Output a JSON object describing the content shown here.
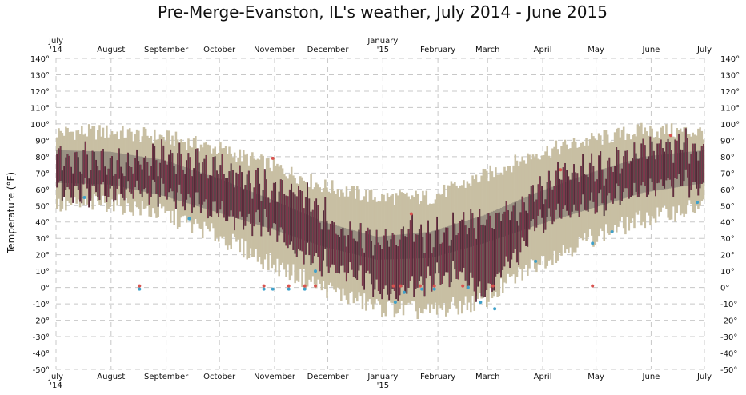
{
  "chart_data": {
    "type": "bar",
    "title": "Pre-Merge-Evanston, IL's weather, July 2014 - June 2015",
    "ylabel": "Temperature (°F)",
    "xlabel": "",
    "ylim": [
      -50,
      140
    ],
    "y_ticks": [
      "-50°",
      "-40°",
      "-30°",
      "-20°",
      "-10°",
      "0°",
      "10°",
      "20°",
      "30°",
      "40°",
      "50°",
      "60°",
      "70°",
      "80°",
      "90°",
      "100°",
      "110°",
      "120°",
      "130°",
      "140°"
    ],
    "x_ticks": [
      {
        "day": 0,
        "line1": "July",
        "line2": "'14"
      },
      {
        "day": 31,
        "line1": "August",
        "line2": ""
      },
      {
        "day": 62,
        "line1": "September",
        "line2": ""
      },
      {
        "day": 92,
        "line1": "October",
        "line2": ""
      },
      {
        "day": 123,
        "line1": "November",
        "line2": ""
      },
      {
        "day": 153,
        "line1": "December",
        "line2": ""
      },
      {
        "day": 184,
        "line1": "January",
        "line2": "'15"
      },
      {
        "day": 215,
        "line1": "February",
        "line2": ""
      },
      {
        "day": 243,
        "line1": "March",
        "line2": ""
      },
      {
        "day": 274,
        "line1": "April",
        "line2": ""
      },
      {
        "day": 304,
        "line1": "May",
        "line2": ""
      },
      {
        "day": 335,
        "line1": "June",
        "line2": ""
      },
      {
        "day": 365,
        "line1": "July",
        "line2": ""
      }
    ],
    "grid": true,
    "record_anchors": {
      "day": [
        0,
        30,
        60,
        90,
        120,
        150,
        180,
        210,
        240,
        270,
        300,
        330,
        365
      ],
      "high": [
        95,
        95,
        92,
        85,
        75,
        62,
        55,
        55,
        68,
        82,
        90,
        96,
        95
      ],
      "low": [
        50,
        52,
        45,
        32,
        15,
        0,
        -12,
        -15,
        -8,
        15,
        30,
        42,
        50
      ]
    },
    "normal_anchors": {
      "day": [
        0,
        30,
        60,
        90,
        120,
        150,
        180,
        210,
        240,
        270,
        300,
        330,
        365
      ],
      "high": [
        84,
        83,
        78,
        67,
        54,
        40,
        31,
        34,
        44,
        58,
        70,
        80,
        84
      ],
      "low": [
        64,
        63,
        56,
        46,
        36,
        25,
        17,
        18,
        27,
        38,
        48,
        58,
        64
      ]
    },
    "actual_anchors": {
      "day": [
        0,
        20,
        40,
        60,
        80,
        100,
        120,
        135,
        150,
        160,
        175,
        185,
        200,
        210,
        225,
        240,
        255,
        270,
        285,
        300,
        315,
        330,
        345,
        365
      ],
      "high": [
        80,
        78,
        76,
        80,
        75,
        70,
        62,
        60,
        45,
        32,
        30,
        28,
        36,
        30,
        38,
        40,
        45,
        58,
        70,
        72,
        75,
        85,
        88,
        85
      ],
      "low": [
        60,
        58,
        60,
        58,
        50,
        42,
        40,
        22,
        15,
        10,
        5,
        -5,
        0,
        5,
        10,
        -5,
        15,
        40,
        45,
        50,
        55,
        60,
        65,
        62
      ]
    },
    "record_high_markers": [
      {
        "day": 47,
        "value": 1
      },
      {
        "day": 117,
        "value": 1
      },
      {
        "day": 122,
        "value": 79
      },
      {
        "day": 131,
        "value": 1
      },
      {
        "day": 140,
        "value": 1
      },
      {
        "day": 146,
        "value": 1
      },
      {
        "day": 190,
        "value": 1
      },
      {
        "day": 194,
        "value": 1
      },
      {
        "day": 200,
        "value": 45
      },
      {
        "day": 205,
        "value": 1
      },
      {
        "day": 213,
        "value": 1
      },
      {
        "day": 229,
        "value": 1
      },
      {
        "day": 246,
        "value": 1
      },
      {
        "day": 284,
        "value": 72
      },
      {
        "day": 302,
        "value": 1
      },
      {
        "day": 346,
        "value": 93
      }
    ],
    "record_low_markers": [
      {
        "day": 16,
        "value": 55
      },
      {
        "day": 47,
        "value": -1
      },
      {
        "day": 75,
        "value": 42
      },
      {
        "day": 117,
        "value": -1
      },
      {
        "day": 122,
        "value": -1
      },
      {
        "day": 131,
        "value": -1
      },
      {
        "day": 140,
        "value": -1
      },
      {
        "day": 146,
        "value": 10
      },
      {
        "day": 191,
        "value": -9
      },
      {
        "day": 196,
        "value": -3
      },
      {
        "day": 206,
        "value": -1
      },
      {
        "day": 213,
        "value": -1
      },
      {
        "day": 232,
        "value": 0
      },
      {
        "day": 239,
        "value": -9
      },
      {
        "day": 247,
        "value": -13
      },
      {
        "day": 270,
        "value": 16
      },
      {
        "day": 302,
        "value": 27
      },
      {
        "day": 313,
        "value": 34
      },
      {
        "day": 361,
        "value": 52
      }
    ],
    "colors": {
      "record_band": "#c8bfa3",
      "normal_band": "#9a9183",
      "actual_bar": "#3d1f2c",
      "actual_center": "#a84a62",
      "record_high_dot": "#d9534f",
      "record_low_dot": "#3fa0c9",
      "grid": "#c8c8c8"
    }
  }
}
